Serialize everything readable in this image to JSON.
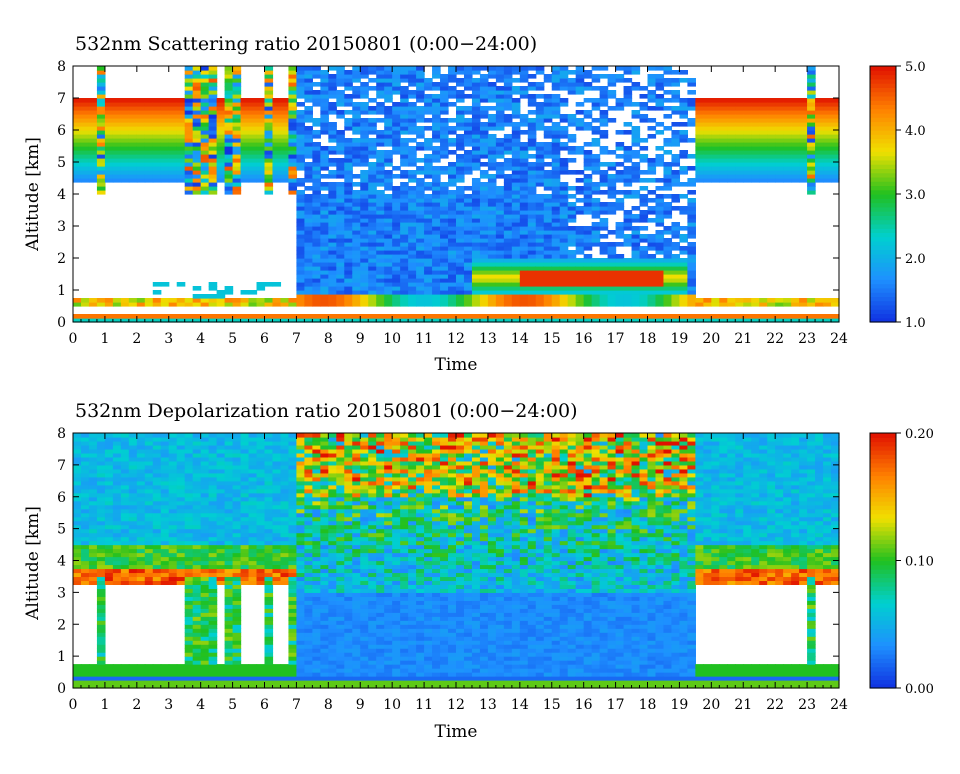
{
  "chart_data": [
    {
      "type": "heatmap",
      "title": "532nm Scattering ratio  20150801 (0:00−24:00)",
      "xlabel": "Time",
      "ylabel": "Altitude [km]",
      "xlim": [
        0,
        24
      ],
      "ylim": [
        0,
        8
      ],
      "x_ticks": [
        "0",
        "1",
        "2",
        "3",
        "4",
        "5",
        "6",
        "7",
        "8",
        "9",
        "10",
        "11",
        "12",
        "13",
        "14",
        "15",
        "16",
        "17",
        "18",
        "19",
        "20",
        "21",
        "22",
        "23",
        "24"
      ],
      "y_ticks": [
        "0",
        "1",
        "2",
        "3",
        "4",
        "5",
        "6",
        "7",
        "8"
      ],
      "colorbar": {
        "min": 1.0,
        "max": 5.0,
        "ticks": [
          "1.0",
          "2.0",
          "3.0",
          "4.0",
          "5.0"
        ]
      },
      "colormap": [
        "#1030e0",
        "#1e90ff",
        "#00d0d0",
        "#20c020",
        "#f0e000",
        "#ff8000",
        "#e01000"
      ],
      "features": {
        "surface_layer_km": 0.2,
        "boundary_layer_top_km": 0.65,
        "high_cloud_base_km": 4.5,
        "high_cloud_top_km": 7.0,
        "daytime_noise_start_h": 7.0,
        "daytime_noise_end_h": 19.6,
        "elevated_aerosol_layer_hours": [
          12.5,
          19.3
        ],
        "elevated_aerosol_layer_km": [
          1.0,
          2.0
        ]
      }
    },
    {
      "type": "heatmap",
      "title": "532nm Depolarization ratio  20150801 (0:00−24:00)",
      "xlabel": "Time",
      "ylabel": "Altitude [km]",
      "xlim": [
        0,
        24
      ],
      "ylim": [
        0,
        8
      ],
      "x_ticks": [
        "0",
        "1",
        "2",
        "3",
        "4",
        "5",
        "6",
        "7",
        "8",
        "9",
        "10",
        "11",
        "12",
        "13",
        "14",
        "15",
        "16",
        "17",
        "18",
        "19",
        "20",
        "21",
        "22",
        "23",
        "24"
      ],
      "y_ticks": [
        "0",
        "1",
        "2",
        "3",
        "4",
        "5",
        "6",
        "7",
        "8"
      ],
      "colorbar": {
        "min": 0.0,
        "max": 0.2,
        "ticks": [
          "0.00",
          "0.10",
          "0.20"
        ]
      },
      "colormap": [
        "#1030e0",
        "#1e90ff",
        "#00d0d0",
        "#20c020",
        "#f0e000",
        "#ff8000",
        "#e01000"
      ],
      "features": {
        "cloud_base_band_km": 3.5,
        "daytime_noise_start_h": 7.0,
        "daytime_noise_end_h": 19.6
      }
    }
  ]
}
